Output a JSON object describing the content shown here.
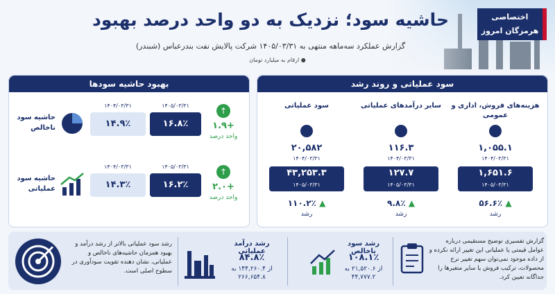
{
  "header": {
    "badge": [
      "اختصاصی",
      "هرمزگان امروز"
    ],
    "title": "حاشیه سود؛ نزدیک به دو واحد درصد بهبود",
    "subtitle": "گزارش عملکرد سه‌ماهه منتهی به ۱۴۰۵/۰۳/۳۱ شرکت پالایش نفت بندرعباس (شبندر)",
    "note": "ارقام به میلیارد تومان"
  },
  "margins": {
    "title": "بهبود حاشیه سودها",
    "rows": [
      {
        "label": "حاشیه سود ناخالص",
        "current_date": "۱۴۰۵/۰۳/۳۱",
        "current": "۱۶.۸٪",
        "previous_date": "۱۴۰۴/۰۳/۳۱",
        "previous": "۱۴.۹٪",
        "change": "+۱.۹",
        "change_unit": "واحد درصد"
      },
      {
        "label": "حاشیه سود عملیاتی",
        "current_date": "۱۴۰۵/۰۳/۳۱",
        "current": "۱۶.۲٪",
        "previous_date": "۱۴۰۴/۰۳/۳۱",
        "previous": "۱۴.۳٪",
        "change": "+۲.۰",
        "change_unit": "واحد درصد"
      }
    ]
  },
  "operating": {
    "title": "سود عملیاتی و روند رشد",
    "columns": [
      {
        "label": "هزینه‌های فروش، اداری و عمومی",
        "previous": "۱,۰۵۵.۱",
        "previous_date": "۱۴۰۴/۰۳/۳۱",
        "current": "۱,۶۵۱.۶",
        "current_date": "۱۴۰۵/۰۳/۳۱",
        "change": "۵۶.۶٪",
        "change_word": "رشد"
      },
      {
        "label": "سایر درآمدهای عملیاتی",
        "previous": "۱۱۶.۳",
        "previous_date": "۱۴۰۴/۰۳/۳۱",
        "current": "۱۲۷.۷",
        "current_date": "۱۴۰۵/۰۳/۳۱",
        "change": "۹.۸٪",
        "change_word": "رشد"
      },
      {
        "label": "سود عملیاتی",
        "previous": "۲۰,۵۸۲",
        "previous_date": "۱۴۰۴/۰۳/۳۱",
        "current": "۴۳,۲۵۳.۳",
        "current_date": "۱۴۰۵/۰۳/۳۱",
        "change": "۱۱۰.۲٪",
        "change_word": "رشد"
      }
    ]
  },
  "footer": {
    "explanation": "گزارش تفسیری توضیح مستقیمی درباره عوامل قیمتی یا عملیاتی این تغییر ارائه نکرده و از داده موجود نمی‌توان سهم تغییر نرخ محصولات، ترکیب فروش یا سایر متغیرها را جداگانه تعیین کرد.",
    "gross_profit": {
      "title": "رشد سود ناخالص",
      "value": "۱۰۸.۱٪",
      "detail": "از ۲۱,۵۲۰.۶ به ۴۴,۷۷۷.۲"
    },
    "revenue": {
      "title": "رشد درآمد عملیاتی",
      "value": "۸۴.۸٪",
      "detail": "از ۱۴۴,۲۶۰.۴ به ۲۶۶,۶۵۴.۸"
    },
    "conclusion": "رشد سود عملیاتی بالاتر از رشد درآمد و بهبود همزمان حاشیه‌های ناخالص و عملیاتی، نشان دهنده تقویت سودآوری در سطوح اصلی است."
  }
}
